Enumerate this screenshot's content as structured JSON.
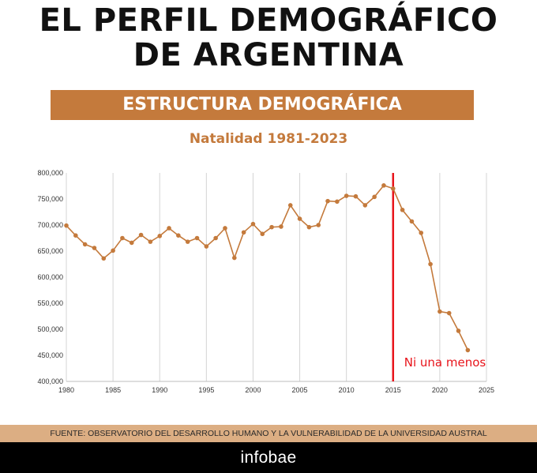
{
  "header": {
    "title_line1": "EL PERFIL DEMOGRÁFICO",
    "title_line2": "DE ARGENTINA",
    "banner": "ESTRUCTURA DEMOGRÁFICA",
    "subtitle": "Natalidad 1981-2023"
  },
  "source": "FUENTE: OBSERVATORIO DEL DESARROLLO HUMANO Y LA VULNERABILIDAD DE LA UNIVERSIDAD AUSTRAL",
  "footer": {
    "brand": "infobae"
  },
  "colors": {
    "accent": "#c47a3c",
    "line": "#c47a3c",
    "marker_line": "#e8141b",
    "source_bar": "#dcae83",
    "footer_bg": "#000000"
  },
  "chart_data": {
    "type": "line",
    "title": "Natalidad 1981-2023",
    "xlim": [
      1980,
      2025
    ],
    "ylim": [
      400000,
      800000
    ],
    "x_ticks": [
      1980,
      1985,
      1990,
      1995,
      2000,
      2005,
      2010,
      2015,
      2020,
      2025
    ],
    "x_tick_labels": [
      "1980",
      "1985",
      "1990",
      "1995",
      "2000",
      "2005",
      "2010",
      "2015",
      "2020",
      "2025"
    ],
    "y_ticks": [
      400000,
      450000,
      500000,
      550000,
      600000,
      650000,
      700000,
      750000,
      800000
    ],
    "y_tick_labels": [
      "400,000",
      "450,000",
      "500,000",
      "550,000",
      "600,000",
      "650,000",
      "700,000",
      "750,000",
      "800,000"
    ],
    "grid": "vertical",
    "series": [
      {
        "x": [
          1980,
          1981,
          1982,
          1983,
          1984,
          1985,
          1986,
          1987,
          1988,
          1989,
          1990,
          1991,
          1992,
          1993,
          1994,
          1995,
          1996,
          1997,
          1998,
          1999,
          2000,
          2001,
          2002,
          2003,
          2004,
          2005,
          2006,
          2007,
          2008,
          2009,
          2010,
          2011,
          2012,
          2013,
          2014,
          2015,
          2016,
          2017,
          2018,
          2019,
          2020,
          2021,
          2022,
          2023
        ],
        "values": [
          699000,
          680000,
          663000,
          656000,
          636000,
          651000,
          675000,
          666000,
          681000,
          668000,
          679000,
          694000,
          680000,
          668000,
          675000,
          659000,
          675000,
          694000,
          637000,
          686000,
          702000,
          683000,
          696000,
          697000,
          738000,
          712000,
          696000,
          700000,
          746000,
          745000,
          756000,
          755000,
          738000,
          754000,
          776000,
          770000,
          729000,
          707000,
          685000,
          625000,
          534000,
          531000,
          497000,
          460000
        ]
      }
    ],
    "annotation": {
      "x": 2015,
      "text": "Ni una menos"
    }
  }
}
